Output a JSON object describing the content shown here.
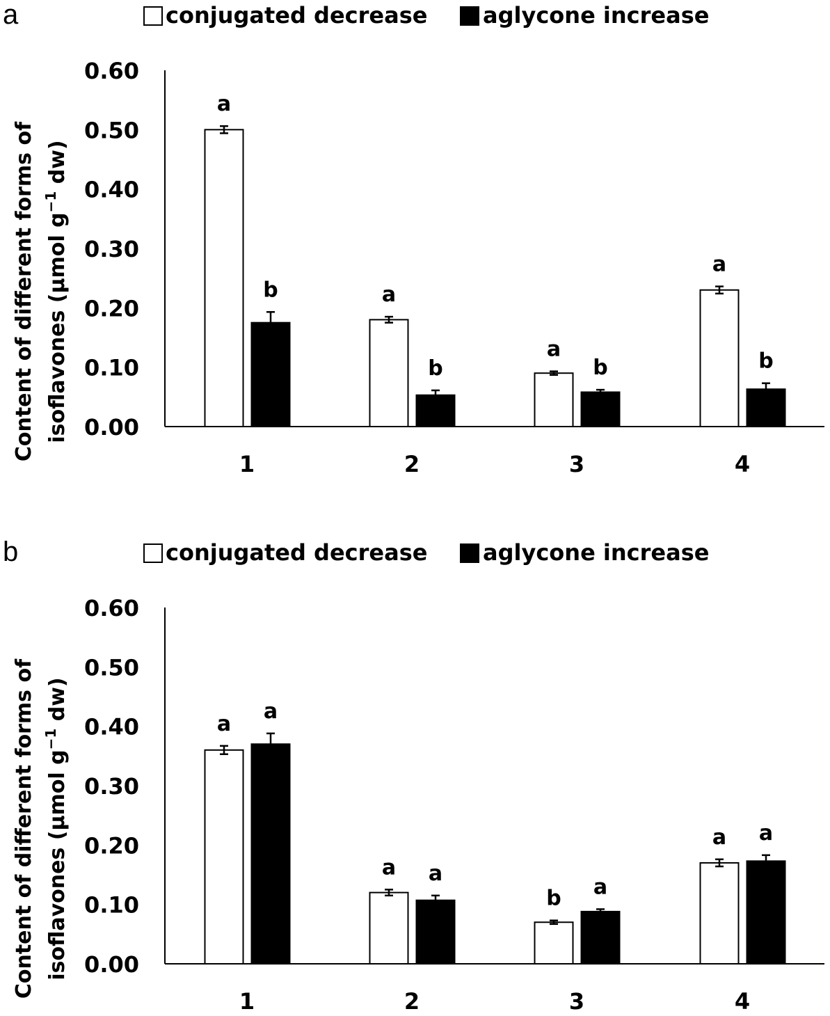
{
  "chart_data": [
    {
      "type": "bar",
      "panel_label": "a",
      "categories": [
        "1",
        "2",
        "3",
        "4"
      ],
      "ylabel_line1": "Content of different forms of",
      "ylabel_line2_main": "isoflavones  (µmol g",
      "ylabel_line2_sup": "−1",
      "ylabel_line2_tail": " dw)",
      "ylim": [
        0,
        0.6
      ],
      "yticks": [
        "0.00",
        "0.10",
        "0.20",
        "0.30",
        "0.40",
        "0.50",
        "0.60"
      ],
      "grid": false,
      "legend_position": "top",
      "series": [
        {
          "name": "conjugated decrease",
          "color": "#ffffff",
          "values": [
            0.5,
            0.18,
            0.09,
            0.23
          ],
          "errors": [
            0.006,
            0.005,
            0.003,
            0.006
          ],
          "letters": [
            "a",
            "a",
            "a",
            "a"
          ]
        },
        {
          "name": "aglycone increase",
          "color": "#000000",
          "values": [
            0.175,
            0.053,
            0.058,
            0.063
          ],
          "errors": [
            0.018,
            0.008,
            0.004,
            0.01
          ],
          "letters": [
            "b",
            "b",
            "b",
            "b"
          ]
        }
      ]
    },
    {
      "type": "bar",
      "panel_label": "b",
      "categories": [
        "1",
        "2",
        "3",
        "4"
      ],
      "ylabel_line1": "Content of different forms of",
      "ylabel_line2_main": "isoflavones  (µmol g",
      "ylabel_line2_sup": "−1",
      "ylabel_line2_tail": " dw)",
      "ylim": [
        0,
        0.6
      ],
      "yticks": [
        "0.00",
        "0.10",
        "0.20",
        "0.30",
        "0.40",
        "0.50",
        "0.60"
      ],
      "grid": false,
      "legend_position": "top",
      "series": [
        {
          "name": "conjugated decrease",
          "color": "#ffffff",
          "values": [
            0.36,
            0.12,
            0.07,
            0.17
          ],
          "errors": [
            0.007,
            0.005,
            0.003,
            0.006
          ],
          "letters": [
            "a",
            "a",
            "b",
            "a"
          ]
        },
        {
          "name": "aglycone increase",
          "color": "#000000",
          "values": [
            0.37,
            0.107,
            0.088,
            0.173
          ],
          "errors": [
            0.018,
            0.008,
            0.004,
            0.01
          ],
          "letters": [
            "a",
            "a",
            "a",
            "a"
          ]
        }
      ]
    }
  ]
}
